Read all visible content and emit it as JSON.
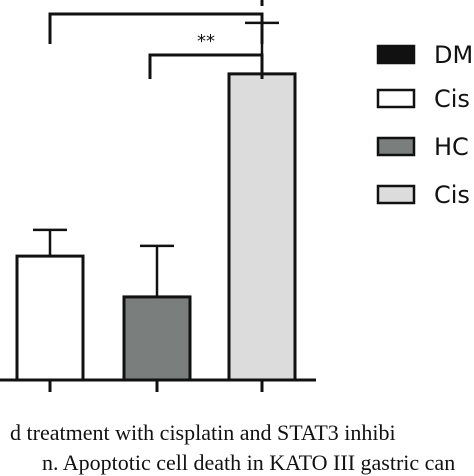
{
  "chart_data": {
    "type": "bar",
    "categories": [
      "DM",
      "Cis",
      "HC",
      "Cis"
    ],
    "series": [
      {
        "values": [
          null,
          85,
          57,
          210
        ],
        "error": [
          null,
          18,
          35,
          35
        ],
        "colors": [
          "#111111",
          "#ffffff",
          "#7a7e7d",
          "#dcdcdc"
        ]
      }
    ],
    "legend": {
      "placement": "right",
      "entries": [
        "DM",
        "Cis",
        "HC",
        "Cis"
      ]
    },
    "significance": [
      {
        "label": "**",
        "from": 2,
        "to": 3
      },
      {
        "label": "",
        "from": 0,
        "to": 3
      }
    ],
    "ylim": [
      0,
      260
    ],
    "grid": false,
    "title": "",
    "xlabel": "",
    "ylabel": ""
  },
  "caption": {
    "line1": "d treatment with cisplatin and STAT3 inhibi",
    "line2": "n. Apoptotic cell death in KATO III gastric can"
  },
  "colors": {
    "axis": "#111111",
    "text": "#111111"
  }
}
